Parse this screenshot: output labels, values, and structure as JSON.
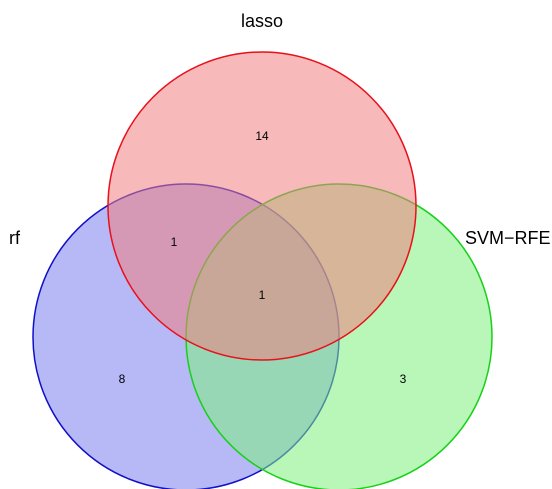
{
  "venn": {
    "sets": [
      {
        "name": "lasso",
        "fill": "#f08080",
        "stroke": "#e8101a"
      },
      {
        "name": "rf",
        "fill": "#7b7ff0",
        "stroke": "#1010c8"
      },
      {
        "name": "SVM−RFE",
        "fill": "#80f080",
        "stroke": "#18d018"
      }
    ],
    "regions": {
      "lasso_only": "14",
      "rf_only": "8",
      "svm_rfe_only": "3",
      "lasso_rf": "1",
      "lasso_rf_svm_rfe": "1"
    }
  }
}
